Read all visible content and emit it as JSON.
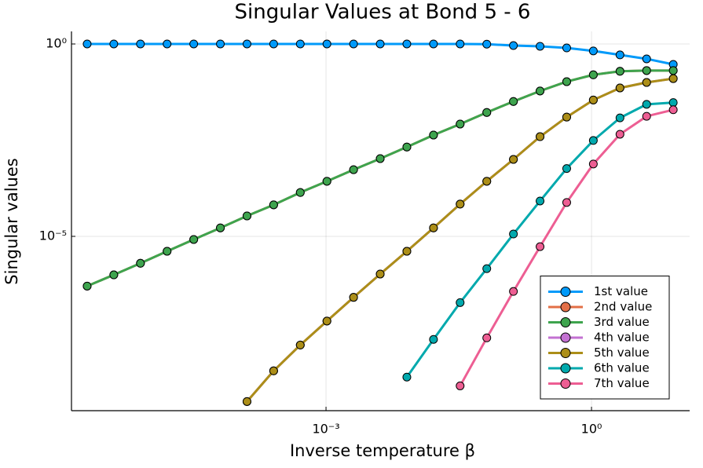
{
  "chart_data": {
    "type": "line",
    "title": "Singular Values at Bond 5 - 6",
    "x_label": "Inverse temperature β",
    "y_label": "Singular values",
    "x_scale": "log",
    "y_scale": "log",
    "grid": true,
    "legend_position": "bottom-right",
    "x": [
      2e-06,
      4e-06,
      8e-06,
      1.6e-05,
      3.2e-05,
      6.4e-05,
      0.000128,
      0.000256,
      0.000512,
      0.001024,
      0.002048,
      0.004096,
      0.008192,
      0.016384,
      0.032768,
      0.065536,
      0.131072,
      0.262144,
      0.524288,
      1.048576,
      2.097152,
      4.194304,
      8.388608
    ],
    "xlim": [
      1.33e-06,
      12.85
    ],
    "ylim": [
      2.95e-10,
      2.12
    ],
    "xticks": [
      {
        "value": 0.001,
        "label": "10⁻³"
      },
      {
        "value": 1,
        "label": "10⁰"
      }
    ],
    "yticks": [
      {
        "value": 1e-05,
        "label": "10⁻⁵"
      },
      {
        "value": 1,
        "label": "10⁰"
      }
    ],
    "series": [
      {
        "name": "1st value",
        "color": "#009AFA",
        "values": [
          1,
          1,
          1,
          1,
          1,
          1,
          1,
          1,
          1,
          1,
          1,
          1,
          1,
          1,
          1,
          0.99,
          0.91,
          0.87,
          0.79,
          0.66,
          0.52,
          0.41,
          0.295
        ]
      },
      {
        "name": "2nd value",
        "color": "#E36F47",
        "values": [
          5.1e-07,
          1e-06,
          2e-06,
          4.1e-06,
          8.3e-06,
          1.66e-05,
          3.4e-05,
          6.6e-05,
          0.000138,
          0.00027,
          0.00054,
          0.00105,
          0.0021,
          0.0043,
          0.0083,
          0.0166,
          0.032,
          0.06,
          0.105,
          0.158,
          0.195,
          0.204,
          0.204
        ]
      },
      {
        "name": "3rd value",
        "color": "#3EA44E",
        "values": [
          5.1e-07,
          1e-06,
          2e-06,
          4.1e-06,
          8.3e-06,
          1.66e-05,
          3.4e-05,
          6.6e-05,
          0.000138,
          0.00027,
          0.00054,
          0.00105,
          0.0021,
          0.0043,
          0.0083,
          0.0166,
          0.032,
          0.06,
          0.105,
          0.158,
          0.195,
          0.204,
          0.204
        ]
      },
      {
        "name": "4th value",
        "color": "#C371D2",
        "values": [
          null,
          null,
          null,
          null,
          null,
          null,
          5.1e-10,
          3.2e-09,
          1.5e-08,
          6.3e-08,
          2.6e-07,
          1.05e-06,
          4.1e-06,
          1.66e-05,
          6.9e-05,
          0.00027,
          0.001,
          0.0039,
          0.0126,
          0.035,
          0.072,
          0.1,
          0.126
        ]
      },
      {
        "name": "5th value",
        "color": "#AC8E18",
        "values": [
          null,
          null,
          null,
          null,
          null,
          null,
          5.1e-10,
          3.2e-09,
          1.5e-08,
          6.3e-08,
          2.6e-07,
          1.05e-06,
          4.1e-06,
          1.66e-05,
          6.9e-05,
          0.00027,
          0.001,
          0.0039,
          0.0126,
          0.035,
          0.072,
          0.1,
          0.126
        ]
      },
      {
        "name": "6th value",
        "color": "#00A9AD",
        "values": [
          null,
          null,
          null,
          null,
          null,
          null,
          null,
          null,
          null,
          null,
          null,
          null,
          2.2e-09,
          2.1e-08,
          1.9e-07,
          1.45e-06,
          1.15e-05,
          8.3e-05,
          0.00058,
          0.0031,
          0.012,
          0.027,
          0.03
        ]
      },
      {
        "name": "7th value",
        "color": "#ED5E93",
        "values": [
          null,
          null,
          null,
          null,
          null,
          null,
          null,
          null,
          null,
          null,
          null,
          null,
          null,
          null,
          1.3e-09,
          2.3e-08,
          3.7e-07,
          5.4e-06,
          7.6e-05,
          0.00076,
          0.0045,
          0.0132,
          0.0195
        ]
      }
    ]
  }
}
